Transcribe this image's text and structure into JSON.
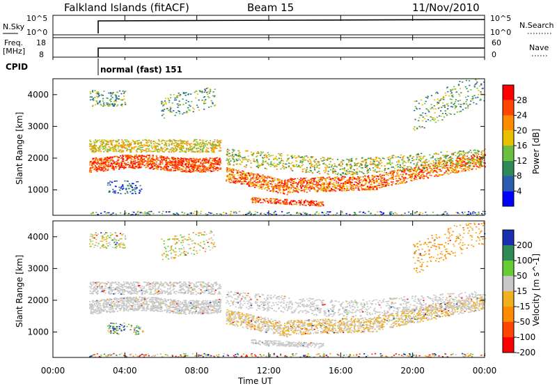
{
  "header": {
    "title": "Falkland Islands (fitACF)",
    "beam": "Beam 15",
    "date": "11/Nov/2010"
  },
  "panel_nsky": {
    "left_label": "N.Sky",
    "right_label": "N.Search",
    "left_ticks": [
      "10^5",
      "10^0"
    ],
    "right_ticks": [
      "10^5",
      "10^0"
    ]
  },
  "panel_freq": {
    "left_label_line1": "Freq.",
    "left_label_line2": "[MHz]",
    "right_label": "Nave",
    "left_ticks": [
      "18",
      "8"
    ],
    "right_ticks": [
      "60",
      "0"
    ]
  },
  "cpid": {
    "label": "CPID",
    "text": "normal (fast) 151"
  },
  "colors": {
    "power": [
      "#0000ff",
      "#2a5db0",
      "#2e8b57",
      "#6abf40",
      "#e8c000",
      "#ff8c00",
      "#ff4500",
      "#ff0000"
    ],
    "velocity": [
      "#1a2fb0",
      "#2e8b57",
      "#66cc33",
      "#c8c8c8",
      "#f0b020",
      "#ff8c00",
      "#ff4500",
      "#ff0000"
    ]
  },
  "chart_data": [
    {
      "type": "heatmap",
      "name": "power",
      "ylabel": "Slant Range [km]",
      "yticks": [
        1000,
        2000,
        3000,
        4000
      ],
      "ylim": [
        200,
        4500
      ],
      "colorbar_label": "Power [dB]",
      "colorbar_ticks": [
        "28",
        "24",
        "20",
        "16",
        "12",
        "8",
        "4"
      ],
      "colorbar_range": [
        0,
        32
      ]
    },
    {
      "type": "heatmap",
      "name": "velocity",
      "ylabel": "Slant Range [km]",
      "yticks": [
        1000,
        2000,
        3000,
        4000
      ],
      "ylim": [
        200,
        4500
      ],
      "colorbar_label": "Velocity [m s^-1]",
      "colorbar_ticks": [
        "200",
        "100",
        "50",
        "15",
        "-15",
        "-50",
        "-100",
        "-200"
      ]
    }
  ],
  "xaxis": {
    "label": "Time UT",
    "ticks": [
      "00:00",
      "04:00",
      "08:00",
      "12:00",
      "16:00",
      "20:00",
      "00:00"
    ]
  }
}
